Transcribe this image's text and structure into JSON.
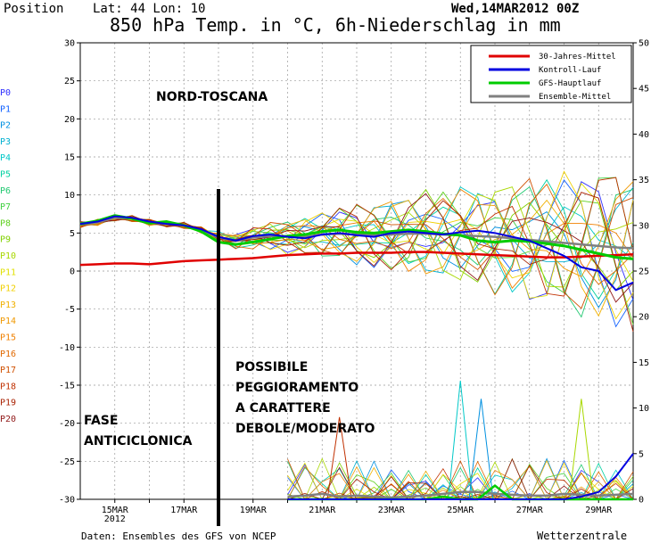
{
  "header": {
    "position_label": "Position",
    "lat_lon": "Lat: 44 Lon: 10",
    "run": "Wed,14MAR2012 00Z",
    "title": "850 hPa Temp. in °C, 6h-Niederschlag in mm"
  },
  "footer": {
    "source": "Daten: Ensembles des GFS von NCEP",
    "brand": "Wetterzentrale"
  },
  "annotations": {
    "region": "NORD-TOSCANA",
    "phase_lines": [
      "FASE",
      "ANTICICLONICA"
    ],
    "outlook_lines": [
      "POSSIBILE",
      "PEGGIORAMENTO",
      "A CARATTERE",
      "DEBOLE/MODERATO"
    ]
  },
  "members": [
    "P0",
    "P1",
    "P2",
    "P3",
    "P4",
    "P5",
    "P6",
    "P7",
    "P8",
    "P9",
    "P10",
    "P11",
    "P12",
    "P13",
    "P14",
    "P15",
    "P16",
    "P17",
    "P18",
    "P19",
    "P20"
  ],
  "member_colors": [
    "#3030ff",
    "#1060ff",
    "#0090e0",
    "#00b0d0",
    "#00c8c8",
    "#00d0a0",
    "#20c870",
    "#40d040",
    "#60d020",
    "#80d000",
    "#a8d800",
    "#e0e000",
    "#f0d000",
    "#f0b000",
    "#f09800",
    "#f08000",
    "#e06800",
    "#d05000",
    "#c03000",
    "#a82000",
    "#901818"
  ],
  "legend": [
    {
      "label": "30-Jahres-Mittel",
      "color": "#e00000"
    },
    {
      "label": "Kontroll-Lauf",
      "color": "#0000e0"
    },
    {
      "label": "GFS-Hauptlauf",
      "color": "#00cc00"
    },
    {
      "label": "Ensemble-Mittel",
      "color": "#808080"
    }
  ],
  "chart_data": {
    "type": "line",
    "x_unit": "day of March 2012",
    "xlim": [
      14,
      30
    ],
    "x_ticks": [
      {
        "x": 15,
        "label": "15MAR",
        "sub": "2012"
      },
      {
        "x": 17,
        "label": "17MAR",
        "sub": ""
      },
      {
        "x": 19,
        "label": "19MAR",
        "sub": ""
      },
      {
        "x": 21,
        "label": "21MAR",
        "sub": ""
      },
      {
        "x": 23,
        "label": "23MAR",
        "sub": ""
      },
      {
        "x": 25,
        "label": "25MAR",
        "sub": ""
      },
      {
        "x": 27,
        "label": "27MAR",
        "sub": ""
      },
      {
        "x": 29,
        "label": "29MAR",
        "sub": ""
      }
    ],
    "y_left": {
      "min": -30,
      "max": 30,
      "ticks": [
        30,
        25,
        20,
        15,
        10,
        5,
        0,
        -5,
        -10,
        -15,
        -20,
        -25,
        -30
      ]
    },
    "y_right": {
      "min": 0,
      "max": 50,
      "ticks": [
        50,
        45,
        40,
        35,
        30,
        25,
        20,
        15,
        10,
        5,
        0
      ]
    },
    "marker_x": 18.0,
    "temp_series": {
      "x": [
        14.0,
        14.5,
        15.0,
        15.5,
        16.0,
        16.5,
        17.0,
        17.5,
        18.0,
        18.5,
        19.0,
        19.5,
        20.0,
        20.5,
        21.0,
        21.5,
        22.0,
        22.5,
        23.0,
        23.5,
        24.0,
        24.5,
        25.0,
        25.5,
        26.0,
        26.5,
        27.0,
        27.5,
        28.0,
        28.5,
        29.0,
        29.5,
        30.0
      ],
      "climatology": [
        0.8,
        0.9,
        1.0,
        1.0,
        0.9,
        1.1,
        1.3,
        1.4,
        1.5,
        1.6,
        1.7,
        1.9,
        2.1,
        2.2,
        2.3,
        2.3,
        2.4,
        2.4,
        2.4,
        2.5,
        2.5,
        2.4,
        2.3,
        2.2,
        2.1,
        2.0,
        1.9,
        1.8,
        1.8,
        1.9,
        2.0,
        2.1,
        2.2
      ],
      "control": [
        6.2,
        6.5,
        7.2,
        7.0,
        6.5,
        6.2,
        6.0,
        5.5,
        4.5,
        4.0,
        4.6,
        4.8,
        4.5,
        4.3,
        4.8,
        5.0,
        4.7,
        4.5,
        5.0,
        5.2,
        5.0,
        4.8,
        5.1,
        5.3,
        5.0,
        4.5,
        4.0,
        3.0,
        2.0,
        0.5,
        0.0,
        -2.5,
        -1.5
      ],
      "operational": [
        6.2,
        6.6,
        7.3,
        6.9,
        6.3,
        6.5,
        6.0,
        5.2,
        3.8,
        3.5,
        3.8,
        4.2,
        4.6,
        4.8,
        5.2,
        5.4,
        5.1,
        5.0,
        5.2,
        5.4,
        5.2,
        4.9,
        4.7,
        4.0,
        3.8,
        4.0,
        3.9,
        3.6,
        3.3,
        2.8,
        2.3,
        1.8,
        1.6
      ],
      "ensemble_mean": [
        6.1,
        6.4,
        7.0,
        6.9,
        6.4,
        6.2,
        6.0,
        5.4,
        4.4,
        4.0,
        4.4,
        4.6,
        4.6,
        4.5,
        4.8,
        4.9,
        4.8,
        4.7,
        4.8,
        4.9,
        4.9,
        4.8,
        4.7,
        4.6,
        4.5,
        4.3,
        4.1,
        3.9,
        3.7,
        3.5,
        3.3,
        3.1,
        3.0
      ]
    },
    "precip_series": {
      "x": [
        20.0,
        20.5,
        21.0,
        21.5,
        22.0,
        22.5,
        23.0,
        23.5,
        24.0,
        24.5,
        25.0,
        25.5,
        26.0,
        26.5,
        27.0,
        27.5,
        28.0,
        28.5,
        29.0,
        29.5,
        30.0
      ],
      "control": [
        0,
        0,
        0,
        0,
        0,
        0,
        0,
        0,
        0,
        0,
        0,
        0,
        0,
        0,
        0,
        0,
        0,
        0.3,
        0.8,
        2.5,
        5.0
      ],
      "operational": [
        0,
        0,
        0,
        0,
        0,
        0,
        0,
        0,
        0,
        0.3,
        0,
        0,
        1.5,
        0,
        0,
        0,
        0,
        0,
        0,
        0,
        0
      ],
      "ensemble_mean": [
        0.3,
        0.4,
        0.6,
        0.3,
        0.4,
        0.3,
        0.2,
        0.3,
        0.4,
        0.6,
        0.8,
        0.8,
        0.6,
        0.5,
        0.4,
        0.4,
        0.6,
        0.5,
        0.4,
        0.5,
        0.6
      ],
      "member_peak": [
        {
          "member": "P4",
          "x": 25.0,
          "value": 13.0
        },
        {
          "member": "P2",
          "x": 25.6,
          "value": 11.0
        },
        {
          "member": "P10",
          "x": 28.5,
          "value": 11.0
        },
        {
          "member": "P18",
          "x": 21.5,
          "value": 9.0
        }
      ]
    }
  }
}
